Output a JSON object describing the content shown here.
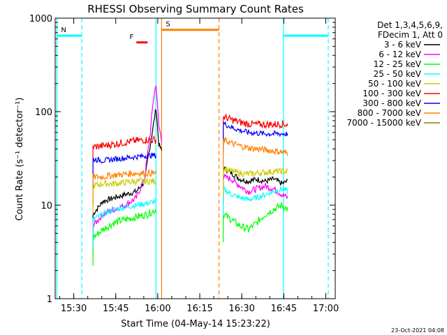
{
  "chart_data": {
    "type": "line",
    "title": "RHESSI Observing Summary Count Rates",
    "xlabel": "Start Time (04-May-14 15:23:22)",
    "ylabel": "Count Rate (s⁻¹ detector⁻¹)",
    "x_unit": "minutes since 15:23:22",
    "xlim": [
      0,
      100
    ],
    "ylim": [
      1,
      1000
    ],
    "yscale": "log",
    "x_ticks": [
      {
        "label": "15:30",
        "x": 6.63
      },
      {
        "label": "15:45",
        "x": 21.63
      },
      {
        "label": "16:00",
        "x": 36.63
      },
      {
        "label": "16:15",
        "x": 51.63
      },
      {
        "label": "16:30",
        "x": 66.63
      },
      {
        "label": "16:45",
        "x": 81.63
      },
      {
        "label": "17:00",
        "x": 96.63
      }
    ],
    "y_ticks": [
      {
        "label": "1",
        "y": 1
      },
      {
        "label": "10",
        "y": 10
      },
      {
        "label": "100",
        "y": 100
      },
      {
        "label": "1000",
        "y": 1000
      }
    ],
    "legend_header": [
      "Det 1,3,4,5,6,9,",
      "FDecim 1, Att 0"
    ],
    "legend_position": "right",
    "timestamp": "23-Oct-2021 04:08",
    "series": [
      {
        "name": "3 - 6 keV",
        "color": "#000000",
        "segments": [
          [
            [
              13.5,
              8
            ],
            [
              17,
              11
            ],
            [
              21,
              12
            ],
            [
              25,
              13
            ],
            [
              29,
              14
            ],
            [
              32,
              18
            ],
            [
              33,
              30
            ],
            [
              34,
              45
            ],
            [
              35,
              70
            ],
            [
              36,
              110
            ],
            [
              37,
              45
            ],
            [
              38,
              38
            ]
          ],
          [
            [
              60,
              25
            ],
            [
              63,
              22
            ],
            [
              66,
              19
            ],
            [
              69,
              18
            ],
            [
              72,
              19
            ],
            [
              75,
              18
            ],
            [
              78,
              19
            ],
            [
              81,
              17
            ],
            [
              83,
              18
            ]
          ]
        ]
      },
      {
        "name": "6 - 12 keV",
        "color": "#ff00ff",
        "segments": [
          [
            [
              13.5,
              6
            ],
            [
              17,
              8
            ],
            [
              21,
              9
            ],
            [
              25,
              10
            ],
            [
              29,
              12
            ],
            [
              32,
              20
            ],
            [
              33,
              35
            ],
            [
              34,
              60
            ],
            [
              35,
              130
            ],
            [
              36,
              200
            ],
            [
              37,
              70
            ],
            [
              38,
              50
            ]
          ],
          [
            [
              60,
              20
            ],
            [
              63,
              19
            ],
            [
              66,
              16
            ],
            [
              69,
              14
            ],
            [
              72,
              15
            ],
            [
              75,
              16
            ],
            [
              78,
              15
            ],
            [
              81,
              13
            ],
            [
              83,
              12
            ]
          ]
        ]
      },
      {
        "name": "12 - 25 keV",
        "color": "#00ff00",
        "segments": [
          [
            [
              13.5,
              4.5
            ],
            [
              17,
              5.5
            ],
            [
              21,
              6.5
            ],
            [
              25,
              7
            ],
            [
              29,
              7.5
            ],
            [
              33,
              8
            ],
            [
              36,
              9
            ]
          ],
          [
            [
              60,
              8
            ],
            [
              63,
              7
            ],
            [
              66,
              6
            ],
            [
              69,
              5.5
            ],
            [
              72,
              6.5
            ],
            [
              75,
              8
            ],
            [
              78,
              9
            ],
            [
              81,
              10
            ],
            [
              83,
              9
            ]
          ]
        ]
      },
      {
        "name": "25 - 50 keV",
        "color": "#00ffff",
        "segments": [
          [
            [
              13.5,
              7
            ],
            [
              17,
              8
            ],
            [
              21,
              9
            ],
            [
              25,
              9.5
            ],
            [
              29,
              10
            ],
            [
              33,
              10.5
            ],
            [
              36,
              11
            ]
          ],
          [
            [
              60,
              15
            ],
            [
              63,
              13
            ],
            [
              66,
              12
            ],
            [
              69,
              11.5
            ],
            [
              72,
              12
            ],
            [
              75,
              13
            ],
            [
              78,
              14
            ],
            [
              81,
              15
            ],
            [
              83,
              14
            ]
          ]
        ]
      },
      {
        "name": "50 - 100 keV",
        "color": "#cccc00",
        "segments": [
          [
            [
              13.5,
              16
            ],
            [
              17,
              17
            ],
            [
              21,
              17
            ],
            [
              25,
              17.5
            ],
            [
              29,
              18
            ],
            [
              33,
              18
            ],
            [
              36,
              18
            ]
          ],
          [
            [
              60,
              25
            ],
            [
              63,
              23
            ],
            [
              66,
              22
            ],
            [
              69,
              21.5
            ],
            [
              72,
              22
            ],
            [
              75,
              22.5
            ],
            [
              78,
              23
            ],
            [
              81,
              23
            ],
            [
              83,
              23
            ]
          ]
        ]
      },
      {
        "name": "100 - 300 keV",
        "color": "#ff0000",
        "segments": [
          [
            [
              13.5,
              42
            ],
            [
              17,
              43
            ],
            [
              21,
              45
            ],
            [
              25,
              47
            ],
            [
              29,
              49
            ],
            [
              33,
              50
            ],
            [
              36,
              50
            ]
          ],
          [
            [
              60,
              88
            ],
            [
              63,
              82
            ],
            [
              66,
              77
            ],
            [
              69,
              74
            ],
            [
              72,
              73
            ],
            [
              75,
              73
            ],
            [
              78,
              73
            ],
            [
              81,
              74
            ],
            [
              83,
              73
            ]
          ]
        ]
      },
      {
        "name": "300 - 800 keV",
        "color": "#0000ff",
        "segments": [
          [
            [
              13.5,
              31
            ],
            [
              17,
              30
            ],
            [
              21,
              31
            ],
            [
              25,
              32
            ],
            [
              29,
              33
            ],
            [
              33,
              34
            ],
            [
              36,
              34
            ]
          ],
          [
            [
              60,
              75
            ],
            [
              63,
              68
            ],
            [
              66,
              63
            ],
            [
              69,
              60
            ],
            [
              72,
              59
            ],
            [
              75,
              58
            ],
            [
              78,
              58
            ],
            [
              81,
              58
            ],
            [
              83,
              58
            ]
          ]
        ]
      },
      {
        "name": "800 - 7000 keV",
        "color": "#ff8000",
        "segments": [
          [
            [
              13.5,
              20
            ],
            [
              17,
              20
            ],
            [
              21,
              21
            ],
            [
              25,
              21.5
            ],
            [
              29,
              22
            ],
            [
              33,
              22
            ],
            [
              36,
              22
            ]
          ],
          [
            [
              60,
              50
            ],
            [
              63,
              46
            ],
            [
              66,
              43
            ],
            [
              69,
              41
            ],
            [
              72,
              40
            ],
            [
              75,
              39
            ],
            [
              78,
              38
            ],
            [
              81,
              37
            ],
            [
              83,
              36
            ]
          ]
        ]
      },
      {
        "name": "7000 - 15000 keV",
        "color": "#808000",
        "segments": []
      }
    ],
    "vertical_markers": [
      {
        "x": 0.6,
        "color": "#00ffff",
        "dashed": false
      },
      {
        "x": 9.5,
        "color": "#00ffff",
        "dashed": true
      },
      {
        "x": 36.0,
        "color": "#00ffff",
        "dashed": false
      },
      {
        "x": 38.0,
        "color": "#ff8000",
        "dashed": false
      },
      {
        "x": 58.5,
        "color": "#ff8000",
        "dashed": true
      },
      {
        "x": 81.5,
        "color": "#00ffff",
        "dashed": false
      },
      {
        "x": 97.5,
        "color": "#00ffff",
        "dashed": true
      }
    ],
    "flag_bars": [
      {
        "label": "N",
        "color": "#00ffff",
        "y": 650,
        "x0": 0.6,
        "x1": 9.5
      },
      {
        "label": "",
        "color": "#00ffff",
        "y": 650,
        "x0": 81.5,
        "x1": 97.5
      },
      {
        "label": "S",
        "color": "#ff8000",
        "y": 750,
        "x0": 38.0,
        "x1": 58.5
      },
      {
        "label": "F",
        "color": "#ff0000",
        "y": 550,
        "x0": 29.0,
        "x1": 33.0
      }
    ]
  }
}
